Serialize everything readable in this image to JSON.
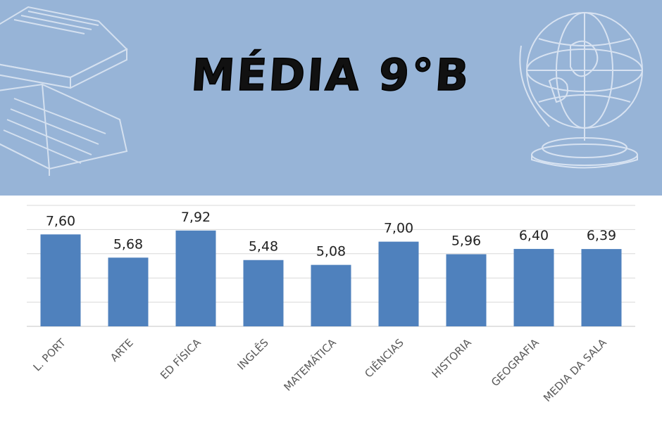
{
  "banner": {
    "title": "MÉDIA 9°B",
    "background_color": "#97b4d7",
    "decorations": [
      "books-icon",
      "globe-icon"
    ]
  },
  "chart_data": {
    "type": "bar",
    "title": "",
    "xlabel": "",
    "ylabel": "",
    "categories": [
      "L. PORT",
      "ARTE",
      "ED FÍSICA",
      "INGLÊS",
      "MATEMÁTICA",
      "CIÊNCIAS",
      "HISTORIA",
      "GEOGRAFIA",
      "MEDIA DA SALA"
    ],
    "values": [
      7.6,
      5.68,
      7.92,
      5.48,
      5.08,
      7.0,
      5.96,
      6.4,
      6.39
    ],
    "value_labels": [
      "7,60",
      "5,68",
      "7,92",
      "5,48",
      "5,08",
      "7,00",
      "5,96",
      "6,40",
      "6,39"
    ],
    "ylim": [
      0,
      10
    ],
    "grid": true,
    "legend": "none",
    "bar_color": "#4f81bd",
    "grid_color": "#d9d9d9"
  }
}
